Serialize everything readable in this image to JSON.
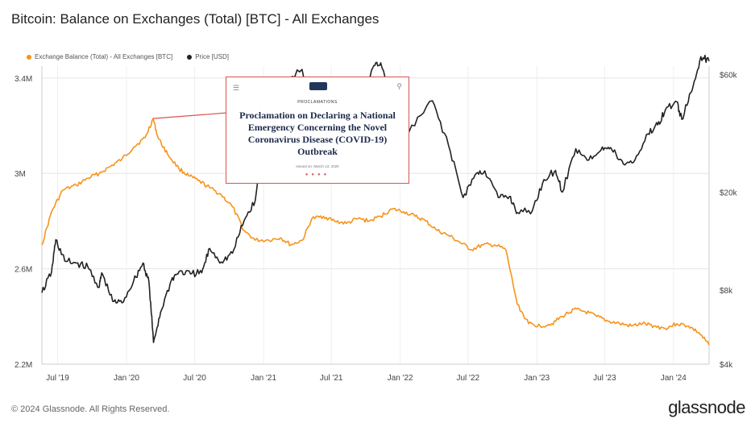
{
  "title": "Bitcoin: Balance on Exchanges (Total) [BTC] - All Exchanges",
  "legend": [
    {
      "label": "Exchange Balance (Total) - All Exchanges [BTC]",
      "color": "#f7931a"
    },
    {
      "label": "Price [USD]",
      "color": "#222222"
    }
  ],
  "footer": {
    "copyright": "© 2024 Glassnode. All Rights Reserved.",
    "brand": "glassnode"
  },
  "inset": {
    "kicker": "PROCLAMATIONS",
    "headline": "Proclamation on Declaring a National Emergency Concerning the Novel Coronavirus Disease (COVID-19) Outbreak",
    "dateline": "Issued on: March 13, 2020",
    "menu_icon": "hamburger-icon",
    "search_icon": "search-icon",
    "border_color": "#d9534f"
  },
  "chart_data": {
    "type": "line",
    "x_axis": {
      "type": "date",
      "range": [
        "2019-05-20",
        "2024-04-05"
      ],
      "tick_labels": [
        "Jul '19",
        "Jan '20",
        "Jul '20",
        "Jan '21",
        "Jul '21",
        "Jan '22",
        "Jul '22",
        "Jan '23",
        "Jul '23",
        "Jan '24"
      ],
      "tick_dates": [
        "2019-07-01",
        "2020-01-01",
        "2020-07-01",
        "2021-01-01",
        "2021-07-01",
        "2022-01-01",
        "2022-07-01",
        "2023-01-01",
        "2023-07-01",
        "2024-01-01"
      ]
    },
    "y_left": {
      "label": "",
      "range": [
        2200000,
        3450000
      ],
      "ticks": [
        2200000,
        2600000,
        3000000,
        3400000
      ],
      "tick_labels": [
        "2.2M",
        "2.6M",
        "3M",
        "3.4M"
      ]
    },
    "y_right": {
      "label": "",
      "scale": "log",
      "range": [
        4000,
        65000
      ],
      "ticks": [
        4000,
        8000,
        20000,
        60000
      ],
      "tick_labels": [
        "$4k",
        "$8k",
        "$20k",
        "$60k"
      ]
    },
    "grid": true,
    "legend_position": "top-left",
    "series": [
      {
        "name": "Exchange Balance (Total) - All Exchanges [BTC]",
        "axis": "left",
        "color": "#f7931a",
        "points": [
          [
            "2019-05-20",
            2700000
          ],
          [
            "2019-06-15",
            2840000
          ],
          [
            "2019-07-15",
            2930000
          ],
          [
            "2019-08-20",
            2950000
          ],
          [
            "2019-09-20",
            2980000
          ],
          [
            "2019-10-20",
            3000000
          ],
          [
            "2019-11-20",
            3030000
          ],
          [
            "2019-12-20",
            3060000
          ],
          [
            "2020-01-20",
            3110000
          ],
          [
            "2020-02-20",
            3150000
          ],
          [
            "2020-03-12",
            3230000
          ],
          [
            "2020-03-25",
            3150000
          ],
          [
            "2020-04-20",
            3080000
          ],
          [
            "2020-05-20",
            3020000
          ],
          [
            "2020-06-15",
            2990000
          ],
          [
            "2020-07-10",
            2970000
          ],
          [
            "2020-08-10",
            2940000
          ],
          [
            "2020-09-10",
            2910000
          ],
          [
            "2020-10-10",
            2860000
          ],
          [
            "2020-11-10",
            2760000
          ],
          [
            "2020-12-10",
            2720000
          ],
          [
            "2021-01-15",
            2720000
          ],
          [
            "2021-02-15",
            2730000
          ],
          [
            "2021-03-15",
            2700000
          ],
          [
            "2021-04-15",
            2720000
          ],
          [
            "2021-05-10",
            2810000
          ],
          [
            "2021-06-10",
            2820000
          ],
          [
            "2021-07-10",
            2800000
          ],
          [
            "2021-08-10",
            2790000
          ],
          [
            "2021-09-10",
            2810000
          ],
          [
            "2021-10-10",
            2800000
          ],
          [
            "2021-11-10",
            2820000
          ],
          [
            "2021-12-10",
            2850000
          ],
          [
            "2022-01-10",
            2840000
          ],
          [
            "2022-02-10",
            2820000
          ],
          [
            "2022-03-10",
            2800000
          ],
          [
            "2022-04-10",
            2760000
          ],
          [
            "2022-05-10",
            2740000
          ],
          [
            "2022-06-10",
            2710000
          ],
          [
            "2022-07-10",
            2680000
          ],
          [
            "2022-08-10",
            2700000
          ],
          [
            "2022-09-10",
            2700000
          ],
          [
            "2022-10-10",
            2680000
          ],
          [
            "2022-11-10",
            2450000
          ],
          [
            "2022-12-10",
            2370000
          ],
          [
            "2023-01-10",
            2360000
          ],
          [
            "2023-02-10",
            2370000
          ],
          [
            "2023-03-10",
            2400000
          ],
          [
            "2023-04-10",
            2430000
          ],
          [
            "2023-05-10",
            2420000
          ],
          [
            "2023-06-10",
            2400000
          ],
          [
            "2023-07-10",
            2380000
          ],
          [
            "2023-08-10",
            2370000
          ],
          [
            "2023-09-10",
            2360000
          ],
          [
            "2023-10-10",
            2370000
          ],
          [
            "2023-11-10",
            2360000
          ],
          [
            "2023-12-10",
            2350000
          ],
          [
            "2024-01-10",
            2370000
          ],
          [
            "2024-02-10",
            2360000
          ],
          [
            "2024-03-10",
            2330000
          ],
          [
            "2024-04-05",
            2280000
          ]
        ]
      },
      {
        "name": "Price [USD]",
        "axis": "right",
        "color": "#222222",
        "points": [
          [
            "2019-05-20",
            7800
          ],
          [
            "2019-06-15",
            9500
          ],
          [
            "2019-06-26",
            12800
          ],
          [
            "2019-07-20",
            10500
          ],
          [
            "2019-08-20",
            10300
          ],
          [
            "2019-09-20",
            9900
          ],
          [
            "2019-10-20",
            8200
          ],
          [
            "2019-10-27",
            9400
          ],
          [
            "2019-11-25",
            7200
          ],
          [
            "2019-12-20",
            7100
          ],
          [
            "2020-01-20",
            8700
          ],
          [
            "2020-02-14",
            10300
          ],
          [
            "2020-03-01",
            8600
          ],
          [
            "2020-03-13",
            4900
          ],
          [
            "2020-04-01",
            6500
          ],
          [
            "2020-04-30",
            8800
          ],
          [
            "2020-05-20",
            9500
          ],
          [
            "2020-06-20",
            9300
          ],
          [
            "2020-07-20",
            9400
          ],
          [
            "2020-08-10",
            11800
          ],
          [
            "2020-09-10",
            10400
          ],
          [
            "2020-10-10",
            11300
          ],
          [
            "2020-11-10",
            15300
          ],
          [
            "2020-12-10",
            18500
          ],
          [
            "2021-01-08",
            40000
          ],
          [
            "2021-01-25",
            32000
          ],
          [
            "2021-02-20",
            55000
          ],
          [
            "2021-04-14",
            63000
          ],
          [
            "2021-05-20",
            38000
          ],
          [
            "2021-06-22",
            32000
          ],
          [
            "2021-07-20",
            30500
          ],
          [
            "2021-08-20",
            48000
          ],
          [
            "2021-09-20",
            43000
          ],
          [
            "2021-10-20",
            64000
          ],
          [
            "2021-11-10",
            67000
          ],
          [
            "2021-12-10",
            49000
          ],
          [
            "2022-01-10",
            42000
          ],
          [
            "2022-01-24",
            35000
          ],
          [
            "2022-03-28",
            47000
          ],
          [
            "2022-05-10",
            31000
          ],
          [
            "2022-06-18",
            19000
          ],
          [
            "2022-07-20",
            23500
          ],
          [
            "2022-08-15",
            24400
          ],
          [
            "2022-09-20",
            19000
          ],
          [
            "2022-10-20",
            19200
          ],
          [
            "2022-11-10",
            16500
          ],
          [
            "2022-12-20",
            16800
          ],
          [
            "2023-01-20",
            22500
          ],
          [
            "2023-02-20",
            24500
          ],
          [
            "2023-03-10",
            20000
          ],
          [
            "2023-04-15",
            30000
          ],
          [
            "2023-05-20",
            27000
          ],
          [
            "2023-06-25",
            30500
          ],
          [
            "2023-07-20",
            29800
          ],
          [
            "2023-08-20",
            26000
          ],
          [
            "2023-09-20",
            27000
          ],
          [
            "2023-10-25",
            34500
          ],
          [
            "2023-11-20",
            37500
          ],
          [
            "2023-12-10",
            43000
          ],
          [
            "2024-01-10",
            46500
          ],
          [
            "2024-01-23",
            39500
          ],
          [
            "2024-02-20",
            52000
          ],
          [
            "2024-03-14",
            71000
          ],
          [
            "2024-04-05",
            68000
          ]
        ]
      }
    ],
    "annotations": [
      {
        "type": "callout",
        "at": "2020-03-12",
        "series": "Exchange Balance (Total) - All Exchanges [BTC]",
        "text": "Proclamation on Declaring a National Emergency Concerning the Novel Coronavirus Disease (COVID-19) Outbreak"
      }
    ]
  }
}
